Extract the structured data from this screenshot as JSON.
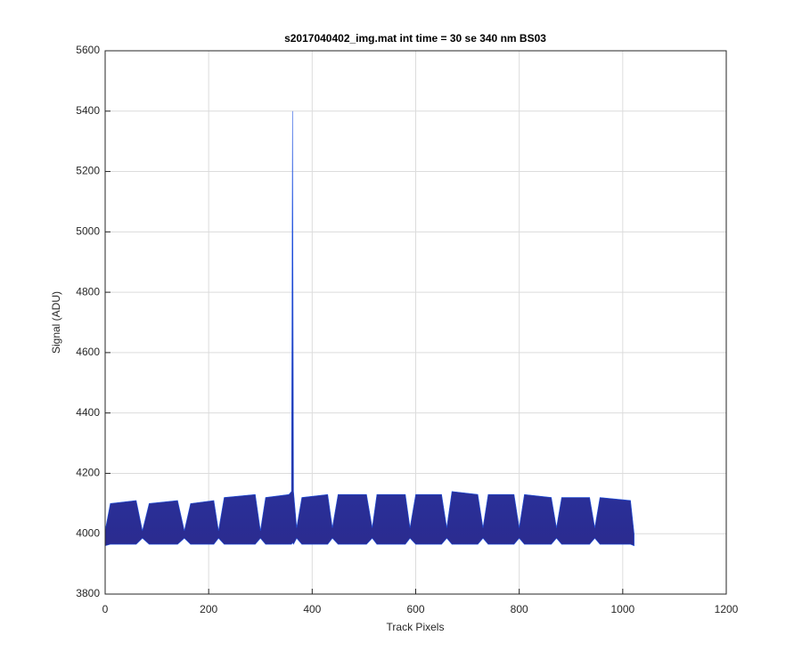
{
  "chart_data": {
    "type": "band",
    "title": "s2017040402_img.mat int time = 30 se  340 nm BS03",
    "x_label": "Track Pixels",
    "y_label": "Signal (ADU)",
    "x": [
      0,
      10,
      60,
      72,
      85,
      140,
      153,
      165,
      210,
      219,
      230,
      290,
      300,
      310,
      355,
      360,
      362,
      364,
      370,
      380,
      430,
      439,
      450,
      505,
      516,
      525,
      580,
      589,
      600,
      650,
      660,
      670,
      720,
      730,
      740,
      790,
      800,
      810,
      862,
      872,
      882,
      936,
      946,
      956,
      1015,
      1022
    ],
    "series": [
      {
        "color": "#1f52e0",
        "values": [
          4010,
          4100,
          4110,
          4010,
          4100,
          4110,
          4010,
          4100,
          4110,
          4010,
          4120,
          4130,
          4010,
          4120,
          4130,
          4140,
          5400,
          4140,
          4020,
          4120,
          4130,
          4020,
          4130,
          4130,
          4020,
          4130,
          4130,
          4020,
          4130,
          4130,
          4020,
          4140,
          4130,
          4020,
          4130,
          4130,
          4020,
          4130,
          4120,
          4020,
          4120,
          4120,
          4020,
          4120,
          4110,
          4000
        ]
      },
      {
        "color": "#2b2b8f",
        "values": [
          3960,
          3965,
          3965,
          3985,
          3965,
          3965,
          3985,
          3965,
          3965,
          3985,
          3965,
          3965,
          3985,
          3965,
          3965,
          3965,
          3970,
          3965,
          3985,
          3965,
          3965,
          3985,
          3965,
          3965,
          3985,
          3965,
          3965,
          3985,
          3965,
          3965,
          3985,
          3965,
          3965,
          3985,
          3965,
          3965,
          3985,
          3965,
          3965,
          3985,
          3965,
          3965,
          3985,
          3965,
          3965,
          3960
        ]
      }
    ],
    "xlim": [
      0,
      1200
    ],
    "xticks": [
      0,
      200,
      400,
      600,
      800,
      1000,
      1200
    ],
    "ylim": [
      3800,
      5600
    ],
    "yticks": [
      3800,
      4000,
      4200,
      4400,
      4600,
      4800,
      5000,
      5200,
      5400,
      5600
    ],
    "grid": true
  }
}
